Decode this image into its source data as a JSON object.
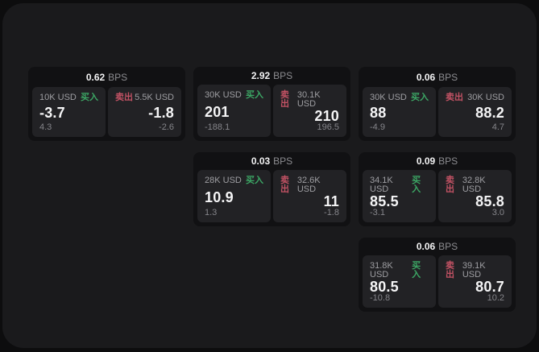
{
  "app": {
    "unit_label": "BPS"
  },
  "colors": {
    "background": "#0d0d0e",
    "panel_bg": "#1a1a1c",
    "card_bg": "#111113",
    "tile_bg": "#222225",
    "buy_green": "#3ca765",
    "sell_red": "#c25264",
    "text_primary": "#f5f5f6",
    "text_secondary": "#9e9ea2"
  },
  "cards": [
    {
      "row": 1,
      "col": 1,
      "bps": "0.62",
      "buy": {
        "amount": "10K USD",
        "label": "买入",
        "price": "-3.7",
        "delta": "4.3"
      },
      "sell": {
        "label": "卖出",
        "amount": "5.5K USD",
        "price": "-1.8",
        "delta": "-2.6"
      }
    },
    {
      "row": 1,
      "col": 2,
      "bps": "2.92",
      "buy": {
        "amount": "30K USD",
        "label": "买入",
        "price": "201",
        "delta": "-188.1"
      },
      "sell": {
        "label": "卖出",
        "amount": "30.1K USD",
        "price": "210",
        "delta": "196.5"
      }
    },
    {
      "row": 1,
      "col": 3,
      "bps": "0.06",
      "buy": {
        "amount": "30K USD",
        "label": "买入",
        "price": "88",
        "delta": "-4.9"
      },
      "sell": {
        "label": "卖出",
        "amount": "30K USD",
        "price": "88.2",
        "delta": "4.7"
      }
    },
    {
      "row": 2,
      "col": 2,
      "bps": "0.03",
      "buy": {
        "amount": "28K USD",
        "label": "买入",
        "price": "10.9",
        "delta": "1.3"
      },
      "sell": {
        "label": "卖出",
        "amount": "32.6K USD",
        "price": "11",
        "delta": "-1.8"
      }
    },
    {
      "row": 2,
      "col": 3,
      "bps": "0.09",
      "buy": {
        "amount": "34.1K USD",
        "label": "买入",
        "price": "85.5",
        "delta": "-3.1"
      },
      "sell": {
        "label": "卖出",
        "amount": "32.8K USD",
        "price": "85.8",
        "delta": "3.0"
      }
    },
    {
      "row": 3,
      "col": 3,
      "bps": "0.06",
      "buy": {
        "amount": "31.8K USD",
        "label": "买入",
        "price": "80.5",
        "delta": "-10.8"
      },
      "sell": {
        "label": "卖出",
        "amount": "39.1K USD",
        "price": "80.7",
        "delta": "10.2"
      }
    }
  ]
}
